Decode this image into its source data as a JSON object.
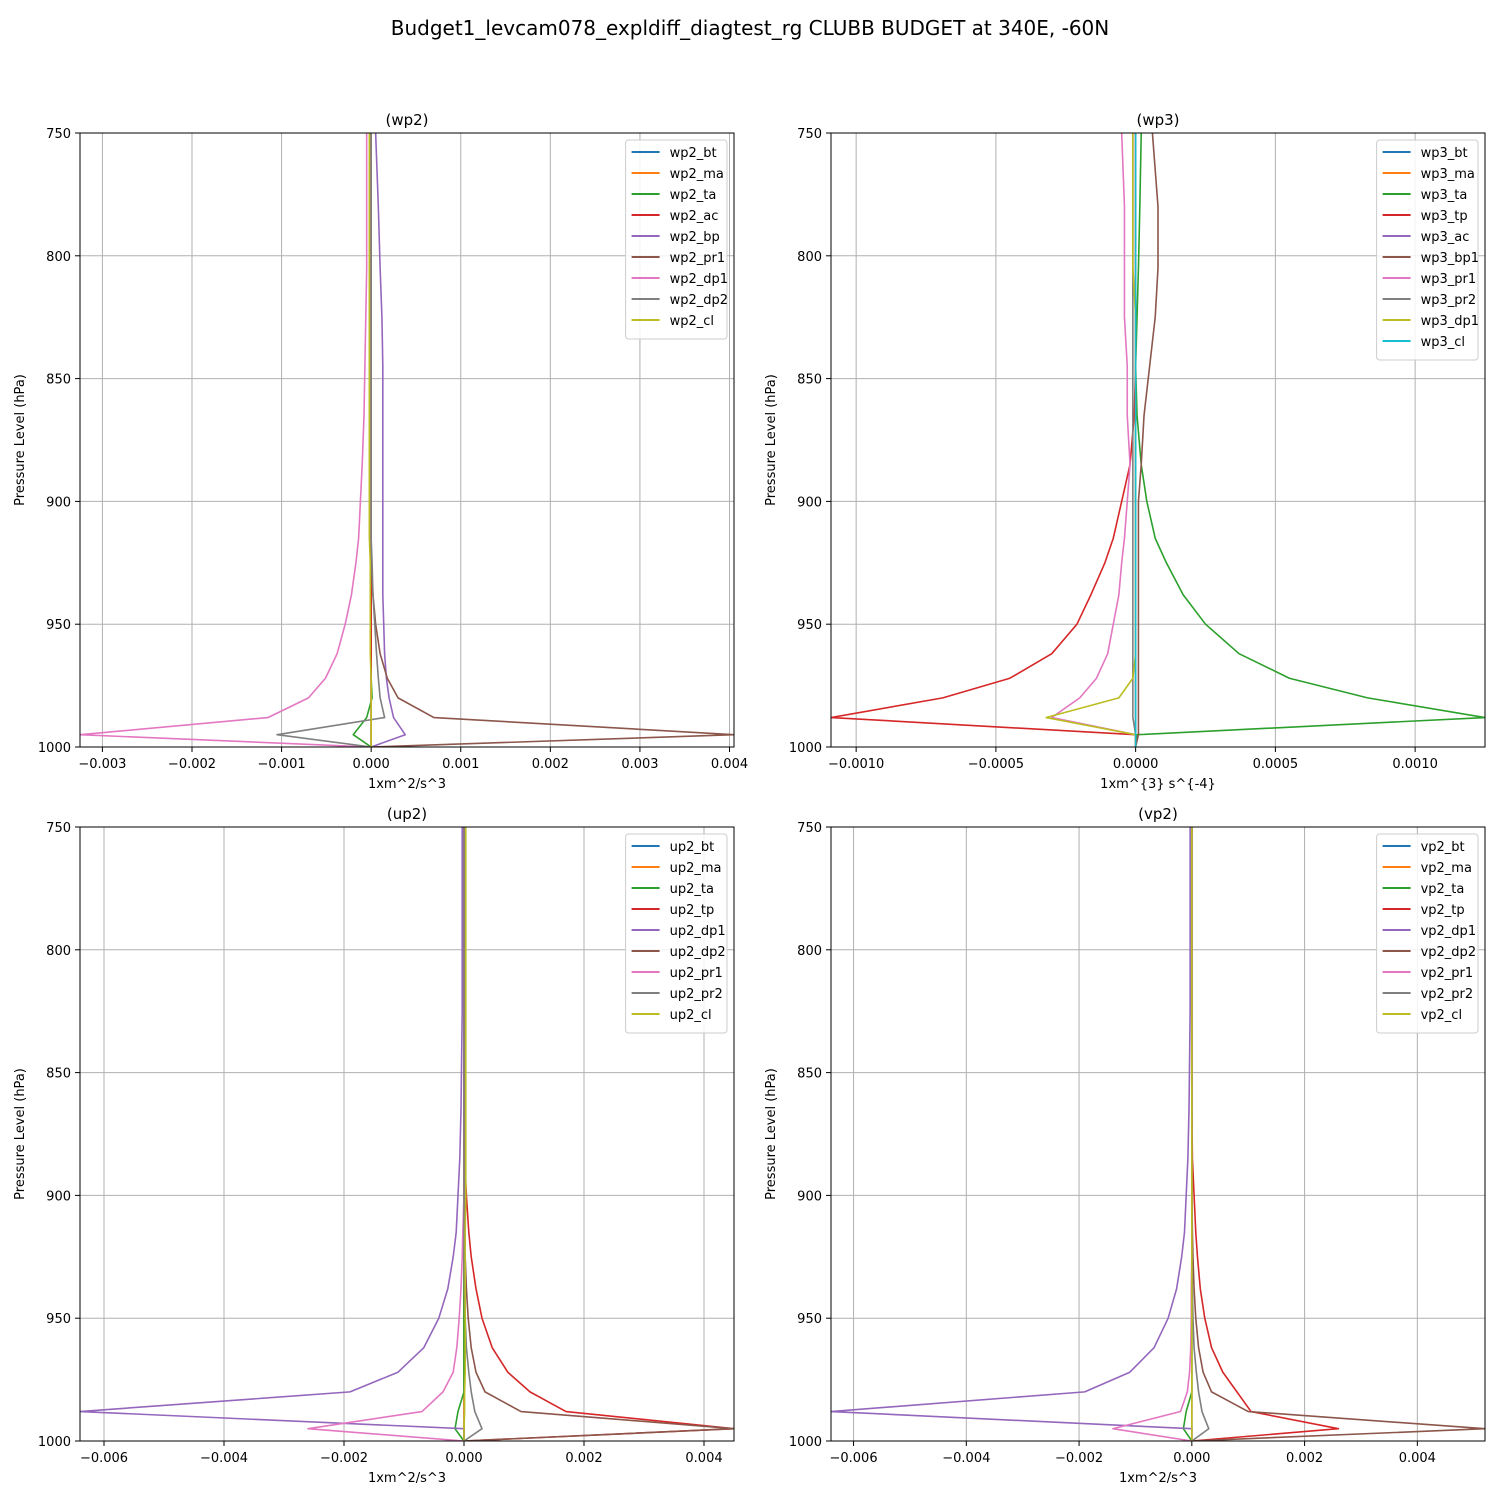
{
  "suptitle": "Budget1_levcam078_expldiff_diagtest_rg CLUBB BUDGET at 340E, -60N",
  "chart_data": [
    {
      "type": "line",
      "title": "(wp2)",
      "xlabel": "1xm^2/s^3",
      "ylabel": "Pressure Level (hPa)",
      "xlim": [
        -0.00325,
        0.00405
      ],
      "ylim": [
        1000,
        750
      ],
      "xticks": [
        -0.003,
        -0.002,
        -0.001,
        0,
        0.001,
        0.002,
        0.003,
        0.004
      ],
      "xtick_labels": [
        "−0.003",
        "−0.002",
        "−0.001",
        "0.000",
        "0.001",
        "0.002",
        "0.003",
        "0.004"
      ],
      "yticks": [
        750,
        800,
        850,
        900,
        950,
        1000
      ],
      "ytick_labels": [
        "750",
        "800",
        "850",
        "900",
        "950",
        "1000"
      ],
      "grid": true,
      "legend_position": "top-right",
      "levels": [
        750,
        780,
        805,
        825,
        845,
        865,
        885,
        900,
        915,
        925,
        938,
        950,
        962,
        972,
        980,
        988,
        995,
        1000
      ],
      "series": [
        {
          "name": "wp2_bt",
          "color": "#1f77b4",
          "values": [
            0,
            0,
            0,
            0,
            0,
            0,
            0,
            0,
            0,
            0,
            0,
            0,
            0,
            0,
            0,
            0,
            0,
            0
          ]
        },
        {
          "name": "wp2_ma",
          "color": "#ff7f0e",
          "values": [
            0,
            0,
            0,
            0,
            0,
            0,
            0,
            0,
            0,
            0,
            0,
            0,
            0,
            0,
            0,
            0,
            0,
            0
          ]
        },
        {
          "name": "wp2_ta",
          "color": "#2ca02c",
          "values": [
            0,
            0,
            0,
            0,
            0,
            0,
            0,
            0,
            0,
            0,
            0,
            0,
            0,
            0,
            1e-05,
            -5e-05,
            -0.0002,
            0
          ]
        },
        {
          "name": "wp2_ac",
          "color": "#d62728",
          "values": [
            0,
            0,
            0,
            0,
            0,
            0,
            0,
            0,
            0,
            0,
            0,
            0,
            0,
            0,
            0,
            0,
            0,
            0
          ]
        },
        {
          "name": "wp2_bp",
          "color": "#9467bd",
          "values": [
            5e-05,
            8e-05,
            0.0001,
            0.00012,
            0.00013,
            0.00013,
            0.00013,
            0.00013,
            0.00013,
            0.00013,
            0.00013,
            0.00014,
            0.00015,
            0.00017,
            0.0002,
            0.00025,
            0.00038,
            0
          ]
        },
        {
          "name": "wp2_pr1",
          "color": "#8c564b",
          "values": [
            0,
            0,
            0,
            0,
            0,
            0,
            0,
            0,
            0,
            0,
            2e-05,
            5e-05,
            0.0001,
            0.00018,
            0.0003,
            0.0007,
            0.00405,
            0
          ]
        },
        {
          "name": "wp2_dp1",
          "color": "#e377c2",
          "values": [
            -5e-05,
            -5e-05,
            -5e-05,
            -6e-05,
            -7e-05,
            -8e-05,
            -0.0001,
            -0.00012,
            -0.00014,
            -0.00017,
            -0.00022,
            -0.00029,
            -0.00038,
            -0.00051,
            -0.0007,
            -0.00115,
            -0.00325,
            0
          ]
        },
        {
          "name": "wp2_dp2",
          "color": "#7f7f7f",
          "values": [
            0,
            0,
            0,
            0,
            0,
            0,
            0,
            0,
            0,
            1e-05,
            2e-05,
            4e-05,
            6e-05,
            8e-05,
            0.0001,
            0.00015,
            -0.00105,
            0
          ]
        },
        {
          "name": "wp2_cl",
          "color": "#bcbd22",
          "values": [
            -2e-05,
            -2e-05,
            -2e-05,
            -2e-05,
            -2e-05,
            -2e-05,
            -2e-05,
            -2e-05,
            -2e-05,
            -1e-05,
            -1e-05,
            -1e-05,
            -1e-05,
            0,
            0,
            0,
            0,
            0
          ]
        }
      ]
    },
    {
      "type": "line",
      "title": "(wp3)",
      "xlabel": "1xm^{3} s^{-4}",
      "ylabel": "Pressure Level (hPa)",
      "xlim": [
        -0.00109,
        0.00125
      ],
      "ylim": [
        1000,
        750
      ],
      "xticks": [
        -0.001,
        -0.0005,
        0,
        0.0005,
        0.001
      ],
      "xtick_labels": [
        "−0.0010",
        "−0.0005",
        "0.0000",
        "0.0005",
        "0.0010"
      ],
      "yticks": [
        750,
        800,
        850,
        900,
        950,
        1000
      ],
      "ytick_labels": [
        "750",
        "800",
        "850",
        "900",
        "950",
        "1000"
      ],
      "grid": true,
      "legend_position": "top-right",
      "levels": [
        750,
        780,
        805,
        825,
        845,
        865,
        885,
        900,
        915,
        925,
        938,
        950,
        962,
        972,
        980,
        988,
        995,
        1000
      ],
      "series": [
        {
          "name": "wp3_bt",
          "color": "#1f77b4",
          "values": [
            0,
            0,
            0,
            0,
            0,
            0,
            0,
            0,
            0,
            0,
            0,
            0,
            0,
            0,
            0,
            0,
            0,
            0
          ]
        },
        {
          "name": "wp3_ma",
          "color": "#ff7f0e",
          "values": [
            0,
            0,
            0,
            0,
            0,
            0,
            0,
            0,
            0,
            0,
            0,
            0,
            0,
            0,
            0,
            0,
            0,
            0
          ]
        },
        {
          "name": "wp3_ta",
          "color": "#2ca02c",
          "values": [
            2e-05,
            1.5e-05,
            1e-05,
            5e-06,
            0,
            5e-06,
            2e-05,
            4e-05,
            7e-05,
            0.00011,
            0.00017,
            0.00025,
            0.00037,
            0.00055,
            0.00083,
            0.00125,
            5e-06,
            0
          ]
        },
        {
          "name": "wp3_tp",
          "color": "#d62728",
          "values": [
            0,
            0,
            0,
            0,
            0,
            -5e-06,
            -2e-05,
            -5e-05,
            -8e-05,
            -0.00011,
            -0.00016,
            -0.00021,
            -0.0003,
            -0.00045,
            -0.00069,
            -0.00109,
            0,
            0
          ]
        },
        {
          "name": "wp3_ac",
          "color": "#9467bd",
          "values": [
            0,
            0,
            0,
            0,
            0,
            0,
            0,
            0,
            0,
            0,
            0,
            0,
            0,
            0,
            0,
            0,
            0,
            0
          ]
        },
        {
          "name": "wp3_bp1",
          "color": "#8c564b",
          "values": [
            6e-05,
            8e-05,
            8e-05,
            7e-05,
            5e-05,
            3e-05,
            2e-05,
            1e-05,
            1e-05,
            1e-05,
            1e-05,
            1e-05,
            1e-05,
            1e-05,
            1e-05,
            1e-05,
            1e-05,
            0
          ]
        },
        {
          "name": "wp3_pr1",
          "color": "#e377c2",
          "values": [
            -5e-05,
            -4e-05,
            -4e-05,
            -4e-05,
            -3e-05,
            -3e-05,
            -2e-05,
            -3e-05,
            -4e-05,
            -5e-05,
            -6e-05,
            -8e-05,
            -0.0001,
            -0.00014,
            -0.0002,
            -0.0003,
            0,
            0
          ]
        },
        {
          "name": "wp3_pr2",
          "color": "#7f7f7f",
          "values": [
            -1e-05,
            -1e-05,
            -1e-05,
            -1e-05,
            -1e-05,
            -1e-05,
            -1e-05,
            -1e-05,
            -1e-05,
            -1e-05,
            -1e-05,
            -1e-05,
            -1e-05,
            -1e-05,
            -1e-05,
            -1e-05,
            0,
            0
          ]
        },
        {
          "name": "wp3_dp1",
          "color": "#bcbd22",
          "values": [
            -1e-05,
            -1e-05,
            -1e-05,
            0,
            0,
            0,
            0,
            0,
            0,
            0,
            0,
            0,
            0,
            -1e-05,
            -6e-05,
            -0.00032,
            0,
            0
          ]
        },
        {
          "name": "wp3_cl",
          "color": "#17becf",
          "values": [
            0,
            0,
            0,
            0,
            0,
            0,
            0,
            0,
            0,
            0,
            0,
            0,
            0,
            0,
            0,
            0,
            0,
            0
          ]
        }
      ]
    },
    {
      "type": "line",
      "title": "(up2)",
      "xlabel": "1xm^2/s^3",
      "ylabel": "Pressure Level (hPa)",
      "xlim": [
        -0.0064,
        0.0045
      ],
      "ylim": [
        1000,
        750
      ],
      "xticks": [
        -0.006,
        -0.004,
        -0.002,
        0,
        0.002,
        0.004
      ],
      "xtick_labels": [
        "−0.006",
        "−0.004",
        "−0.002",
        "0.000",
        "0.002",
        "0.004"
      ],
      "yticks": [
        750,
        800,
        850,
        900,
        950,
        1000
      ],
      "ytick_labels": [
        "750",
        "800",
        "850",
        "900",
        "950",
        "1000"
      ],
      "grid": true,
      "legend_position": "top-right",
      "levels": [
        750,
        780,
        805,
        825,
        845,
        865,
        885,
        900,
        915,
        925,
        938,
        950,
        962,
        972,
        980,
        988,
        995,
        1000
      ],
      "series": [
        {
          "name": "up2_bt",
          "color": "#1f77b4",
          "values": [
            0,
            0,
            0,
            0,
            0,
            0,
            0,
            0,
            0,
            0,
            0,
            0,
            0,
            0,
            0,
            0,
            0,
            0
          ]
        },
        {
          "name": "up2_ma",
          "color": "#ff7f0e",
          "values": [
            0,
            0,
            0,
            0,
            0,
            0,
            0,
            0,
            0,
            0,
            0,
            0,
            0,
            0,
            0,
            0,
            0,
            0
          ]
        },
        {
          "name": "up2_ta",
          "color": "#2ca02c",
          "values": [
            0,
            0,
            0,
            0,
            0,
            0,
            0,
            0,
            0,
            0,
            0,
            0,
            0,
            0,
            0,
            -0.0001,
            -0.00015,
            0
          ]
        },
        {
          "name": "up2_tp",
          "color": "#d62728",
          "values": [
            0,
            0,
            0,
            0,
            0,
            0,
            1e-05,
            4e-05,
            8e-05,
            0.00012,
            0.0002,
            0.0003,
            0.00047,
            0.00073,
            0.0011,
            0.0017,
            0.0045,
            0
          ]
        },
        {
          "name": "up2_dp1",
          "color": "#9467bd",
          "values": [
            -3e-05,
            -3e-05,
            -3e-05,
            -3e-05,
            -4e-05,
            -5e-05,
            -7e-05,
            -0.0001,
            -0.00013,
            -0.00018,
            -0.00027,
            -0.00042,
            -0.00067,
            -0.0011,
            -0.0019,
            -0.0064,
            0,
            0
          ]
        },
        {
          "name": "up2_dp2",
          "color": "#8c564b",
          "values": [
            0,
            0,
            0,
            0,
            0,
            0,
            0,
            0,
            1e-05,
            2e-05,
            4e-05,
            7e-05,
            0.00012,
            0.0002,
            0.00035,
            0.00095,
            0.0045,
            0
          ]
        },
        {
          "name": "up2_pr1",
          "color": "#e377c2",
          "values": [
            0,
            0,
            0,
            0,
            0,
            0,
            0,
            0,
            -2e-05,
            -3e-05,
            -5e-05,
            -8e-05,
            -0.00012,
            -0.00018,
            -0.00035,
            -0.0007,
            -0.0026,
            0
          ]
        },
        {
          "name": "up2_pr2",
          "color": "#7f7f7f",
          "values": [
            0,
            0,
            0,
            0,
            0,
            0,
            0,
            0,
            0,
            0,
            1e-05,
            2e-05,
            4e-05,
            8e-05,
            0.00012,
            0.00018,
            0.0003,
            0
          ]
        },
        {
          "name": "up2_cl",
          "color": "#bcbd22",
          "values": [
            3e-05,
            3e-05,
            3e-05,
            3e-05,
            3e-05,
            3e-05,
            3e-05,
            3e-05,
            2e-05,
            2e-05,
            2e-05,
            2e-05,
            2e-05,
            2e-05,
            1e-05,
            1e-05,
            0,
            0
          ]
        }
      ]
    },
    {
      "type": "line",
      "title": "(vp2)",
      "xlabel": "1xm^2/s^3",
      "ylabel": "Pressure Level (hPa)",
      "xlim": [
        -0.0064,
        0.0052
      ],
      "ylim": [
        1000,
        750
      ],
      "xticks": [
        -0.006,
        -0.004,
        -0.002,
        0,
        0.002,
        0.004
      ],
      "xtick_labels": [
        "−0.006",
        "−0.004",
        "−0.002",
        "0.000",
        "0.002",
        "0.004"
      ],
      "yticks": [
        750,
        800,
        850,
        900,
        950,
        1000
      ],
      "ytick_labels": [
        "750",
        "800",
        "850",
        "900",
        "950",
        "1000"
      ],
      "grid": true,
      "legend_position": "top-right",
      "levels": [
        750,
        780,
        805,
        825,
        845,
        865,
        885,
        900,
        915,
        925,
        938,
        950,
        962,
        972,
        980,
        988,
        995,
        1000
      ],
      "series": [
        {
          "name": "vp2_bt",
          "color": "#1f77b4",
          "values": [
            0,
            0,
            0,
            0,
            0,
            0,
            0,
            0,
            0,
            0,
            0,
            0,
            0,
            0,
            0,
            0,
            0,
            0
          ]
        },
        {
          "name": "vp2_ma",
          "color": "#ff7f0e",
          "values": [
            0,
            0,
            0,
            0,
            0,
            0,
            0,
            0,
            0,
            0,
            0,
            0,
            0,
            0,
            0,
            0,
            0,
            0
          ]
        },
        {
          "name": "vp2_ta",
          "color": "#2ca02c",
          "values": [
            0,
            0,
            0,
            0,
            0,
            0,
            0,
            0,
            0,
            0,
            0,
            0,
            0,
            0,
            0,
            -0.0001,
            -0.00015,
            0
          ]
        },
        {
          "name": "vp2_tp",
          "color": "#d62728",
          "values": [
            0,
            0,
            0,
            0,
            0,
            0,
            1e-05,
            4e-05,
            7e-05,
            0.0001,
            0.00015,
            0.00023,
            0.00035,
            0.00055,
            0.0008,
            0.00105,
            0.0026,
            0
          ]
        },
        {
          "name": "vp2_dp1",
          "color": "#9467bd",
          "values": [
            -3e-05,
            -3e-05,
            -3e-05,
            -3e-05,
            -4e-05,
            -5e-05,
            -7e-05,
            -0.0001,
            -0.00013,
            -0.00018,
            -0.00027,
            -0.00042,
            -0.00067,
            -0.0011,
            -0.0019,
            -0.0064,
            0,
            0
          ]
        },
        {
          "name": "vp2_dp2",
          "color": "#8c564b",
          "values": [
            0,
            0,
            0,
            0,
            0,
            0,
            0,
            0,
            1e-05,
            2e-05,
            4e-05,
            7e-05,
            0.00012,
            0.0002,
            0.00035,
            0.001,
            0.0052,
            0
          ]
        },
        {
          "name": "vp2_pr1",
          "color": "#e377c2",
          "values": [
            0,
            0,
            0,
            0,
            0,
            0,
            0,
            0,
            0,
            0,
            -1e-05,
            -1e-05,
            -2e-05,
            -4e-05,
            -8e-05,
            -0.0002,
            -0.0014,
            0
          ]
        },
        {
          "name": "vp2_pr2",
          "color": "#7f7f7f",
          "values": [
            0,
            0,
            0,
            0,
            0,
            0,
            0,
            0,
            0,
            0,
            1e-05,
            2e-05,
            4e-05,
            8e-05,
            0.00012,
            0.00018,
            0.0003,
            0
          ]
        },
        {
          "name": "vp2_cl",
          "color": "#bcbd22",
          "values": [
            0,
            0,
            0,
            0,
            0,
            0,
            0,
            0,
            0,
            0,
            0,
            0,
            0,
            0,
            0,
            0,
            0,
            0
          ]
        }
      ]
    }
  ]
}
